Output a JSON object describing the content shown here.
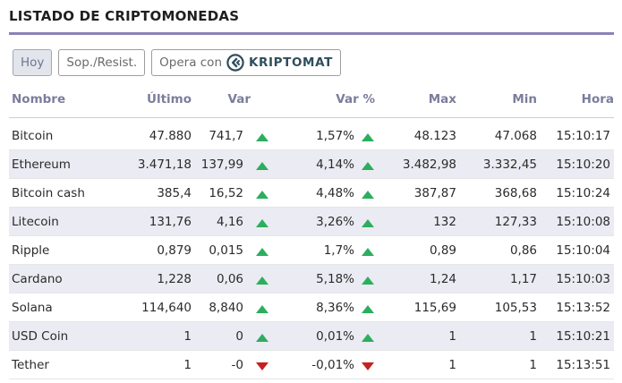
{
  "header": {
    "title": "LISTADO DE CRIPTOMONEDAS"
  },
  "toolbar": {
    "hoy_label": "Hoy",
    "sop_label": "Sop./Resist.",
    "opera_label": "Opera con",
    "brand_label": "KRIPTOMAT"
  },
  "colors": {
    "accent": "#8b82b8",
    "positive": "#2cae5e",
    "negative": "#d42727",
    "header_text": "#7b7d9c",
    "row_alt": "#ebebf3"
  },
  "table": {
    "headers": {
      "nombre": "Nombre",
      "ultimo": "Último",
      "var": "Var",
      "var_pct": "Var %",
      "max": "Max",
      "min": "Min",
      "hora": "Hora"
    },
    "rows": [
      {
        "nombre": "Bitcoin",
        "ultimo": "47.880",
        "var": "741,7",
        "var_pct": "1,57%",
        "max": "48.123",
        "min": "47.068",
        "hora": "15:10:17",
        "trend": "up"
      },
      {
        "nombre": "Ethereum",
        "ultimo": "3.471,18",
        "var": "137,99",
        "var_pct": "4,14%",
        "max": "3.482,98",
        "min": "3.332,45",
        "hora": "15:10:20",
        "trend": "up"
      },
      {
        "nombre": "Bitcoin cash",
        "ultimo": "385,4",
        "var": "16,52",
        "var_pct": "4,48%",
        "max": "387,87",
        "min": "368,68",
        "hora": "15:10:24",
        "trend": "up"
      },
      {
        "nombre": "Litecoin",
        "ultimo": "131,76",
        "var": "4,16",
        "var_pct": "3,26%",
        "max": "132",
        "min": "127,33",
        "hora": "15:10:08",
        "trend": "up"
      },
      {
        "nombre": "Ripple",
        "ultimo": "0,879",
        "var": "0,015",
        "var_pct": "1,7%",
        "max": "0,89",
        "min": "0,86",
        "hora": "15:10:04",
        "trend": "up"
      },
      {
        "nombre": "Cardano",
        "ultimo": "1,228",
        "var": "0,06",
        "var_pct": "5,18%",
        "max": "1,24",
        "min": "1,17",
        "hora": "15:10:03",
        "trend": "up"
      },
      {
        "nombre": "Solana",
        "ultimo": "114,640",
        "var": "8,840",
        "var_pct": "8,36%",
        "max": "115,69",
        "min": "105,53",
        "hora": "15:13:52",
        "trend": "up"
      },
      {
        "nombre": "USD Coin",
        "ultimo": "1",
        "var": "0",
        "var_pct": "0,01%",
        "max": "1",
        "min": "1",
        "hora": "15:10:21",
        "trend": "up"
      },
      {
        "nombre": "Tether",
        "ultimo": "1",
        "var": "-0",
        "var_pct": "-0,01%",
        "max": "1",
        "min": "1",
        "hora": "15:13:51",
        "trend": "down"
      }
    ]
  }
}
